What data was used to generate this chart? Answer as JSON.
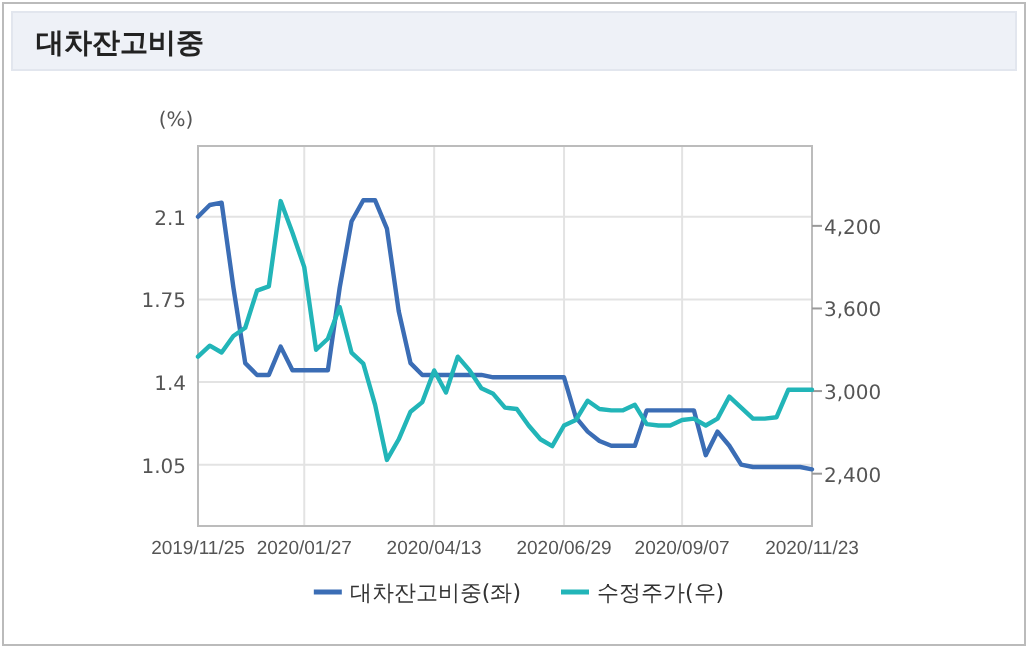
{
  "chart_data": {
    "type": "line",
    "title": "대차잔고비중",
    "ylabel": "(%)",
    "x": [
      "2019-11-25",
      "2019-12-02",
      "2019-12-09",
      "2019-12-16",
      "2019-12-23",
      "2019-12-30",
      "2020-01-06",
      "2020-01-13",
      "2020-01-20",
      "2020-01-27",
      "2020-02-03",
      "2020-02-10",
      "2020-02-17",
      "2020-02-24",
      "2020-03-02",
      "2020-03-09",
      "2020-03-16",
      "2020-03-23",
      "2020-03-30",
      "2020-04-06",
      "2020-04-13",
      "2020-04-20",
      "2020-04-27",
      "2020-05-04",
      "2020-05-11",
      "2020-05-18",
      "2020-05-25",
      "2020-06-01",
      "2020-06-08",
      "2020-06-15",
      "2020-06-22",
      "2020-06-29",
      "2020-07-06",
      "2020-07-13",
      "2020-07-20",
      "2020-07-27",
      "2020-08-03",
      "2020-08-10",
      "2020-08-17",
      "2020-08-24",
      "2020-08-31",
      "2020-09-07",
      "2020-09-14",
      "2020-09-21",
      "2020-09-28",
      "2020-10-05",
      "2020-10-12",
      "2020-10-19",
      "2020-10-26",
      "2020-11-02",
      "2020-11-09",
      "2020-11-16",
      "2020-11-23"
    ],
    "series": [
      {
        "name": "대차잔고비중(좌)",
        "color": "#3b6db5",
        "values": [
          2.1,
          2.15,
          2.16,
          1.8,
          1.48,
          1.43,
          1.43,
          1.55,
          1.45,
          1.45,
          1.45,
          1.45,
          1.8,
          2.08,
          2.17,
          2.17,
          2.05,
          1.7,
          1.48,
          1.43,
          1.43,
          1.43,
          1.43,
          1.43,
          1.43,
          1.42,
          1.42,
          1.42,
          1.42,
          1.42,
          1.42,
          1.42,
          1.25,
          1.19,
          1.15,
          1.13,
          1.13,
          1.13,
          1.28,
          1.28,
          1.28,
          1.28,
          1.28,
          1.09,
          1.19,
          1.13,
          1.05,
          1.04,
          1.04,
          1.04,
          1.04,
          1.04,
          1.03
        ]
      },
      {
        "name": "수정주가(우)",
        "color": "#22b5b8",
        "axis": "y2",
        "values": [
          3250,
          3330,
          3280,
          3400,
          3460,
          3730,
          3760,
          4380,
          4150,
          3900,
          3300,
          3380,
          3610,
          3280,
          3200,
          2900,
          2500,
          2650,
          2850,
          2920,
          3150,
          2990,
          3250,
          3150,
          3020,
          2980,
          2880,
          2870,
          2750,
          2650,
          2600,
          2750,
          2790,
          2930,
          2870,
          2860,
          2860,
          2900,
          2760,
          2750,
          2750,
          2790,
          2800,
          2750,
          2800,
          2960,
          2880,
          2800,
          2800,
          2810,
          3010,
          3010,
          3010
        ]
      }
    ],
    "xlim": [
      "2019-11-25",
      "2020-11-23"
    ],
    "xticks": [
      {
        "value": "2019-11-25",
        "label": "2019/11/25"
      },
      {
        "value": "2020-01-27",
        "label": "2020/01/27"
      },
      {
        "value": "2020-04-13",
        "label": "2020/04/13"
      },
      {
        "value": "2020-06-29",
        "label": "2020/06/29"
      },
      {
        "value": "2020-09-07",
        "label": "2020/09/07"
      },
      {
        "value": "2020-11-23",
        "label": "2020/11/23"
      }
    ],
    "ylim": [
      0.79,
      2.4
    ],
    "yticks": [
      1.05,
      1.4,
      1.75,
      2.1
    ],
    "y2lim": [
      2020,
      4780
    ],
    "y2ticks": [
      {
        "value": 2400,
        "label": "2,400"
      },
      {
        "value": 3000,
        "label": "3,000"
      },
      {
        "value": 3600,
        "label": "3,600"
      },
      {
        "value": 4200,
        "label": "4,200"
      }
    ],
    "grid": true,
    "legend": "bottom",
    "marker": "none",
    "line_style": "solid"
  }
}
